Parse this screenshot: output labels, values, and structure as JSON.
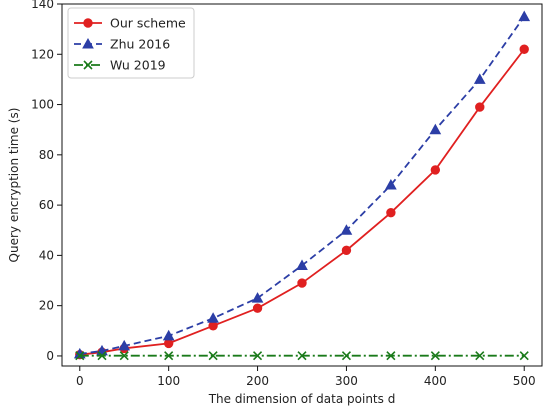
{
  "chart_data": {
    "type": "line",
    "title": "",
    "xlabel": "The dimension of data points d",
    "ylabel": "Query encryption time (s)",
    "xlim": [
      -20,
      520
    ],
    "ylim": [
      -4,
      140
    ],
    "x_ticks": [
      0,
      100,
      200,
      300,
      400,
      500
    ],
    "y_ticks": [
      0,
      20,
      40,
      60,
      80,
      100,
      120,
      140
    ],
    "x_tick_labels": [
      "0",
      "100",
      "200",
      "300",
      "400",
      "500"
    ],
    "y_tick_labels": [
      "0",
      "20",
      "40",
      "60",
      "80",
      "100",
      "120",
      "140"
    ],
    "grid": false,
    "legend_position": "top-left",
    "x": [
      0,
      25,
      50,
      100,
      150,
      200,
      250,
      300,
      350,
      400,
      450,
      500
    ],
    "series": [
      {
        "name": "Our scheme",
        "color": "#e02020",
        "marker": "circle",
        "line_style": "solid",
        "values": [
          0.5,
          1.5,
          3,
          5,
          12,
          19,
          29,
          42,
          57,
          74,
          99,
          122
        ]
      },
      {
        "name": "Zhu 2016",
        "color": "#2c3ea6",
        "marker": "triangle",
        "line_style": "dashed",
        "values": [
          0.8,
          2,
          4,
          8,
          15,
          23,
          36,
          50,
          68,
          90,
          110,
          135
        ]
      },
      {
        "name": "Wu 2019",
        "color": "#1a7a1a",
        "marker": "x",
        "line_style": "dashdot",
        "values": [
          0.1,
          0.1,
          0.1,
          0.1,
          0.1,
          0.1,
          0.1,
          0.1,
          0.1,
          0.1,
          0.1,
          0.1
        ]
      }
    ]
  }
}
